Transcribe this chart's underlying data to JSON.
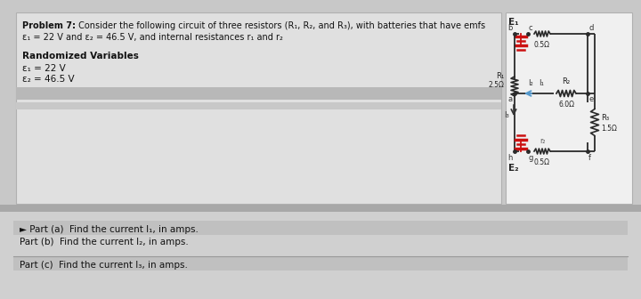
{
  "title_bold": "Problem 7: ",
  "title_rest": " Consider the following circuit of three resistors (R₁, R₂, and R₃), with batteries that have emfs",
  "subtitle": "ε₁ = 22 V and ε₂ = 46.5 V, and internal resistances r₁ and r₂",
  "randomized_label": "Randomized Variables",
  "var1": "ε₁ = 22 V",
  "var2": "ε₂ = 46.5 V",
  "parts": [
    "► Part (a)  Find the current I₁, in amps.",
    "Part (b)  Find the current I₂, in amps.",
    "Part (c)  Find the current I₃, in amps."
  ],
  "bg_color": "#c8c8c8",
  "panel_color": "#dcdcdc",
  "white_panel_color": "#e8e8e8",
  "wire_color": "#2a2a2a",
  "battery_color": "#cc1111",
  "resistor_color": "#2a2a2a",
  "arrow_color": "#5599cc",
  "emf_labels": [
    "E₁",
    "E₂"
  ],
  "current_labels": [
    "I₁",
    "I₂",
    "I₃"
  ]
}
